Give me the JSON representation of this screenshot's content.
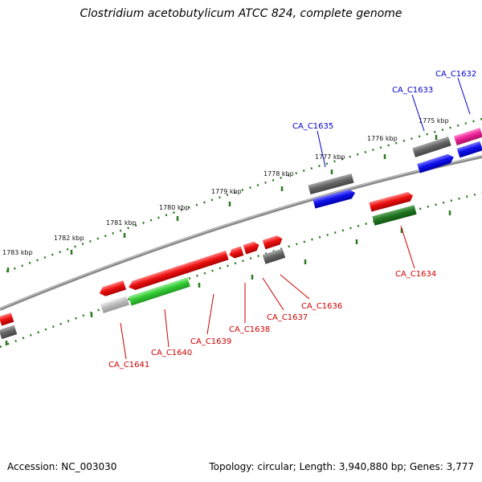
{
  "title": "Clostridium acetobutylicum ATCC 824, complete genome",
  "accession": "Accession: NC_003030",
  "topology": "Topology: circular; Length: 3,940,880 bp; Genes: 3,777",
  "kbp_labels": [
    "1783 kbp",
    "1782 kbp",
    "1781 kbp",
    "1780 kbp",
    "1779 kbp",
    "1778 kbp",
    "1777 kbp",
    "1776 kbp",
    "1775 kbp"
  ],
  "gene_labels": [
    "CA_C1632",
    "CA_C1633",
    "CA_C1635",
    "CA_C1634",
    "CA_C1636",
    "CA_C1637",
    "CA_C1638",
    "CA_C1639",
    "CA_C1640",
    "CA_C1641"
  ],
  "colors": {
    "label_blue": "#0000cc",
    "label_red": "#cc0000",
    "backbone": "#888888",
    "tick_green": "#2a7a1f",
    "red_gene": "#ee1111",
    "grey_gene": "#666666",
    "blue_gene": "#1111ee",
    "green_gene": "#33cc33",
    "darkgreen_gene": "#227722",
    "magenta_gene": "#ee2299",
    "lightgrey_gene": "#bbbbbb"
  }
}
